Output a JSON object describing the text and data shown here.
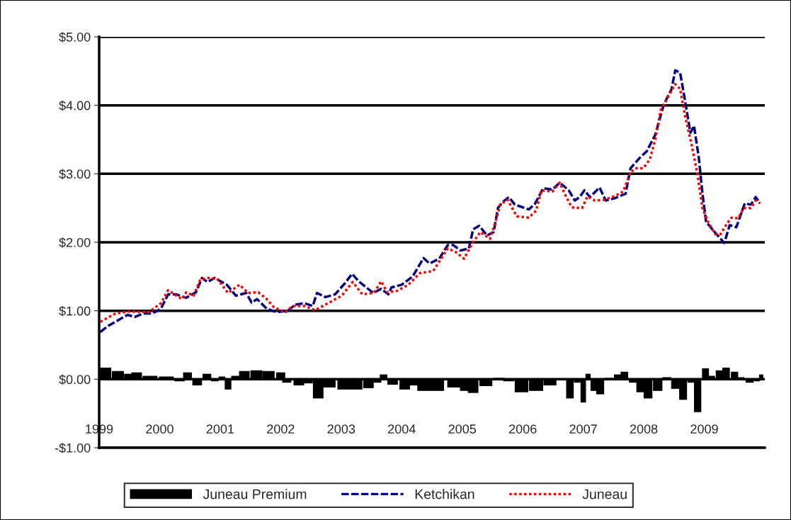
{
  "chart_data": {
    "type": "line",
    "xlim": [
      1999,
      2010
    ],
    "xticks": [
      1999,
      2000,
      2001,
      2002,
      2003,
      2004,
      2005,
      2006,
      2007,
      2008,
      2009
    ],
    "ylim": [
      -1,
      5
    ],
    "yticks": [
      {
        "value": -1,
        "label": "-$1.00"
      },
      {
        "value": 0,
        "label": "$0.00"
      },
      {
        "value": 1,
        "label": "$1.00"
      },
      {
        "value": 2,
        "label": "$2.00"
      },
      {
        "value": 3,
        "label": "$3.00"
      },
      {
        "value": 4,
        "label": "$4.00"
      },
      {
        "value": 5,
        "label": "$5.00"
      }
    ],
    "grid": "y",
    "legend": "bottom",
    "series": [
      {
        "name": "Juneau Premium",
        "type": "bar",
        "color": "#000000",
        "x": [
          1999.09,
          1999.31,
          1999.49,
          1999.62,
          1999.84,
          2000.11,
          2000.33,
          2000.46,
          2000.62,
          2000.78,
          2000.91,
          2001.03,
          2001.13,
          2001.25,
          2001.4,
          2001.6,
          2001.8,
          2002.0,
          2002.1,
          2002.3,
          2002.45,
          2002.62,
          2002.8,
          2003.05,
          2003.25,
          2003.45,
          2003.6,
          2003.7,
          2003.85,
          2004.05,
          2004.2,
          2004.35,
          2004.57,
          2004.87,
          2005.04,
          2005.18,
          2005.39,
          2005.61,
          2005.77,
          2005.98,
          2006.22,
          2006.45,
          2006.65,
          2006.78,
          2006.9,
          2007.0,
          2007.08,
          2007.17,
          2007.28,
          2007.43,
          2007.57,
          2007.68,
          2007.82,
          2007.94,
          2008.07,
          2008.23,
          2008.38,
          2008.52,
          2008.65,
          2008.78,
          2008.89,
          2009.02,
          2009.12,
          2009.25,
          2009.36,
          2009.5,
          2009.6,
          2009.75,
          2009.87,
          2009.94
        ],
        "values": [
          0.17,
          0.12,
          0.08,
          0.1,
          0.05,
          0.04,
          -0.03,
          0.1,
          -0.09,
          0.08,
          -0.03,
          0.04,
          -0.15,
          0.05,
          0.12,
          0.13,
          0.12,
          0.1,
          -0.05,
          -0.09,
          -0.06,
          -0.28,
          -0.12,
          -0.15,
          -0.15,
          -0.13,
          -0.05,
          0.07,
          -0.08,
          -0.15,
          -0.09,
          -0.17,
          -0.17,
          -0.12,
          -0.17,
          -0.2,
          -0.1,
          0.02,
          -0.03,
          -0.19,
          -0.17,
          -0.09,
          0.01,
          -0.28,
          -0.05,
          -0.34,
          0.08,
          -0.17,
          -0.22,
          0.02,
          0.07,
          0.11,
          -0.05,
          -0.19,
          -0.28,
          -0.17,
          0.03,
          -0.14,
          -0.3,
          -0.05,
          -0.48,
          0.16,
          0.05,
          0.13,
          0.17,
          0.11,
          0.03,
          -0.05,
          -0.03,
          0.07
        ]
      },
      {
        "name": "Ketchikan",
        "color": "#000080",
        "line_style": "dashed",
        "x": [
          1999.02,
          1999.15,
          1999.39,
          1999.47,
          1999.59,
          1999.73,
          1999.88,
          2000.02,
          2000.14,
          2000.27,
          2000.44,
          2000.6,
          2000.7,
          2000.79,
          2000.91,
          2001.11,
          2001.26,
          2001.43,
          2001.52,
          2001.61,
          2001.77,
          2001.93,
          2002.12,
          2002.24,
          2002.39,
          2002.53,
          2002.6,
          2002.74,
          2002.9,
          2003.06,
          2003.18,
          2003.29,
          2003.53,
          2003.66,
          2003.78,
          2003.83,
          2004.0,
          2004.18,
          2004.36,
          2004.46,
          2004.62,
          2004.76,
          2004.85,
          2004.97,
          2005.11,
          2005.18,
          2005.28,
          2005.41,
          2005.52,
          2005.59,
          2005.67,
          2005.77,
          2005.87,
          2006.1,
          2006.2,
          2006.34,
          2006.49,
          2006.61,
          2006.76,
          2006.86,
          2006.94,
          2007.02,
          2007.11,
          2007.27,
          2007.37,
          2007.51,
          2007.7,
          2007.78,
          2007.93,
          2008.05,
          2008.19,
          2008.33,
          2008.46,
          2008.52,
          2008.6,
          2008.68,
          2008.77,
          2008.83,
          2008.91,
          2008.97,
          2009.03,
          2009.18,
          2009.33,
          2009.42,
          2009.53,
          2009.67,
          2009.77,
          2009.85,
          2009.92
        ],
        "values": [
          0.69,
          0.78,
          0.9,
          0.94,
          0.91,
          0.96,
          0.96,
          1.03,
          1.24,
          1.24,
          1.19,
          1.27,
          1.48,
          1.42,
          1.48,
          1.38,
          1.22,
          1.26,
          1.12,
          1.17,
          1.03,
          0.98,
          1.0,
          1.09,
          1.11,
          1.07,
          1.26,
          1.2,
          1.24,
          1.4,
          1.54,
          1.43,
          1.26,
          1.32,
          1.24,
          1.34,
          1.38,
          1.5,
          1.77,
          1.69,
          1.76,
          1.96,
          1.96,
          1.88,
          1.91,
          2.19,
          2.24,
          2.1,
          2.15,
          2.5,
          2.59,
          2.66,
          2.55,
          2.48,
          2.56,
          2.79,
          2.77,
          2.87,
          2.76,
          2.61,
          2.66,
          2.76,
          2.66,
          2.8,
          2.61,
          2.64,
          2.71,
          3.08,
          3.23,
          3.33,
          3.57,
          4.01,
          4.24,
          4.51,
          4.48,
          4.08,
          3.6,
          3.7,
          3.23,
          2.71,
          2.3,
          2.14,
          1.99,
          2.25,
          2.22,
          2.57,
          2.55,
          2.66,
          2.57
        ]
      },
      {
        "name": "Juneau",
        "color": "#ff0000",
        "line_style": "dotted",
        "x": [
          1999.02,
          1999.27,
          1999.5,
          1999.82,
          2000.02,
          2000.14,
          2000.37,
          2000.44,
          2000.56,
          2000.67,
          2000.79,
          2000.95,
          2001.13,
          2001.32,
          2001.46,
          2001.63,
          2001.77,
          2001.89,
          2002.08,
          2002.2,
          2002.39,
          2002.57,
          2002.78,
          2003.01,
          2003.19,
          2003.35,
          2003.54,
          2003.66,
          2003.76,
          2003.92,
          2004.11,
          2004.3,
          2004.52,
          2004.76,
          2004.89,
          2005.03,
          2005.17,
          2005.3,
          2005.46,
          2005.55,
          2005.63,
          2005.75,
          2005.9,
          2006.1,
          2006.22,
          2006.31,
          2006.49,
          2006.61,
          2006.72,
          2006.81,
          2006.98,
          2007.07,
          2007.19,
          2007.34,
          2007.51,
          2007.66,
          2007.78,
          2007.86,
          2007.99,
          2008.1,
          2008.19,
          2008.28,
          2008.4,
          2008.52,
          2008.6,
          2008.69,
          2008.79,
          2008.89,
          2008.97,
          2009.06,
          2009.18,
          2009.27,
          2009.38,
          2009.45,
          2009.56,
          2009.65,
          2009.77,
          2009.85,
          2009.92
        ],
        "values": [
          0.84,
          0.96,
          0.99,
          0.98,
          1.11,
          1.3,
          1.17,
          1.27,
          1.22,
          1.45,
          1.48,
          1.47,
          1.26,
          1.38,
          1.26,
          1.27,
          1.17,
          1.05,
          0.98,
          1.07,
          1.07,
          1.01,
          1.11,
          1.22,
          1.42,
          1.24,
          1.26,
          1.43,
          1.27,
          1.29,
          1.38,
          1.55,
          1.58,
          1.91,
          1.86,
          1.76,
          1.99,
          2.15,
          2.05,
          2.3,
          2.55,
          2.62,
          2.38,
          2.36,
          2.46,
          2.76,
          2.74,
          2.87,
          2.66,
          2.51,
          2.5,
          2.67,
          2.61,
          2.62,
          2.67,
          2.74,
          3.02,
          3.08,
          3.08,
          3.21,
          3.5,
          3.93,
          4.12,
          4.31,
          4.24,
          3.81,
          3.43,
          2.98,
          2.5,
          2.3,
          2.12,
          2.12,
          2.28,
          2.36,
          2.35,
          2.5,
          2.5,
          2.61,
          2.57
        ]
      }
    ]
  }
}
